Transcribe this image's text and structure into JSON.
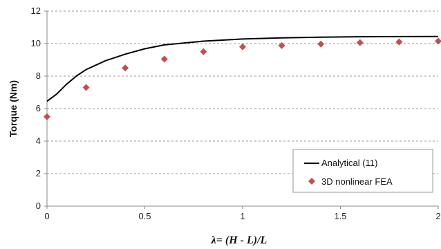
{
  "chart_data": {
    "type": "line",
    "xlabel": "λ= (H - L)/L",
    "ylabel": "Torque   (Nm)",
    "xlim": [
      0,
      2
    ],
    "ylim": [
      0,
      12
    ],
    "x_ticks": [
      "0",
      "0.5",
      "1",
      "1.5",
      "2"
    ],
    "y_ticks": [
      "0",
      "2",
      "4",
      "6",
      "8",
      "10",
      "12"
    ],
    "grid": "horizontal dashed",
    "legend_position": "bottom-right",
    "series": [
      {
        "name": "Analytical (11)",
        "style": "line",
        "color": "#000000",
        "x": [
          0,
          0.05,
          0.1,
          0.15,
          0.2,
          0.3,
          0.4,
          0.5,
          0.6,
          0.8,
          1.0,
          1.2,
          1.4,
          1.6,
          1.8,
          2.0
        ],
        "y": [
          6.45,
          6.9,
          7.5,
          8.0,
          8.4,
          8.95,
          9.35,
          9.68,
          9.92,
          10.15,
          10.28,
          10.35,
          10.39,
          10.42,
          10.43,
          10.44
        ]
      },
      {
        "name": "3D nonlinear FEA",
        "style": "marker",
        "marker": "diamond",
        "color": "#c0504d",
        "x": [
          0,
          0.2,
          0.4,
          0.6,
          0.8,
          1.0,
          1.2,
          1.4,
          1.6,
          1.8,
          2.0
        ],
        "y": [
          5.5,
          7.3,
          8.5,
          9.05,
          9.5,
          9.8,
          9.88,
          9.97,
          10.06,
          10.1,
          10.15
        ]
      }
    ]
  }
}
